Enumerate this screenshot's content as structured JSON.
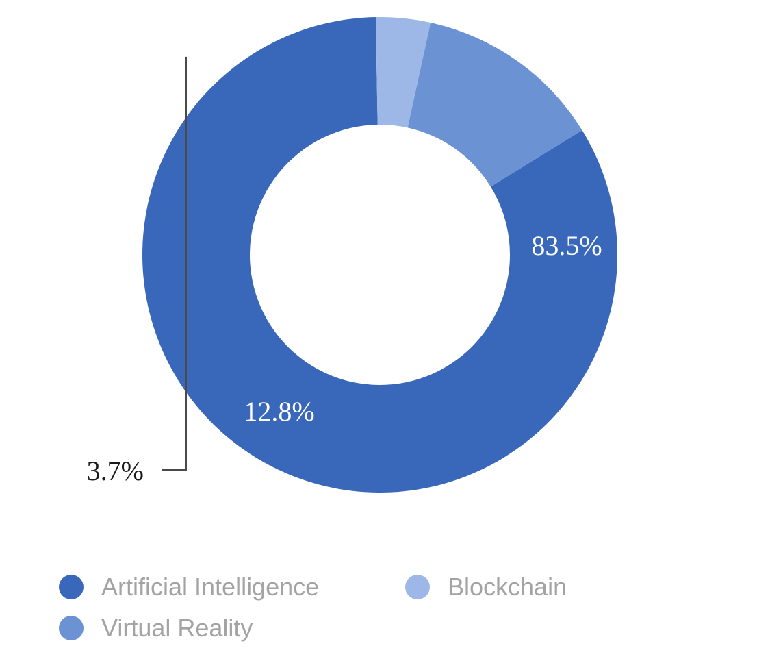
{
  "chart_data": {
    "type": "pie",
    "donut": true,
    "title": "",
    "slices": [
      {
        "name": "Artificial Intelligence",
        "value": 83.5,
        "label": "83.5%",
        "color": "#3968bb"
      },
      {
        "name": "Virtual Reality",
        "value": 12.8,
        "label": "12.8%",
        "color": "#6b93d3"
      },
      {
        "name": "Blockchain",
        "value": 3.7,
        "label": "3.7%",
        "color": "#9db8e6"
      }
    ],
    "legend_position": "bottom",
    "legend": [
      {
        "name": "Artificial Intelligence",
        "color": "#3968bb"
      },
      {
        "name": "Blockchain",
        "color": "#9db8e6"
      },
      {
        "name": "Virtual Reality",
        "color": "#6b93d3"
      }
    ]
  }
}
